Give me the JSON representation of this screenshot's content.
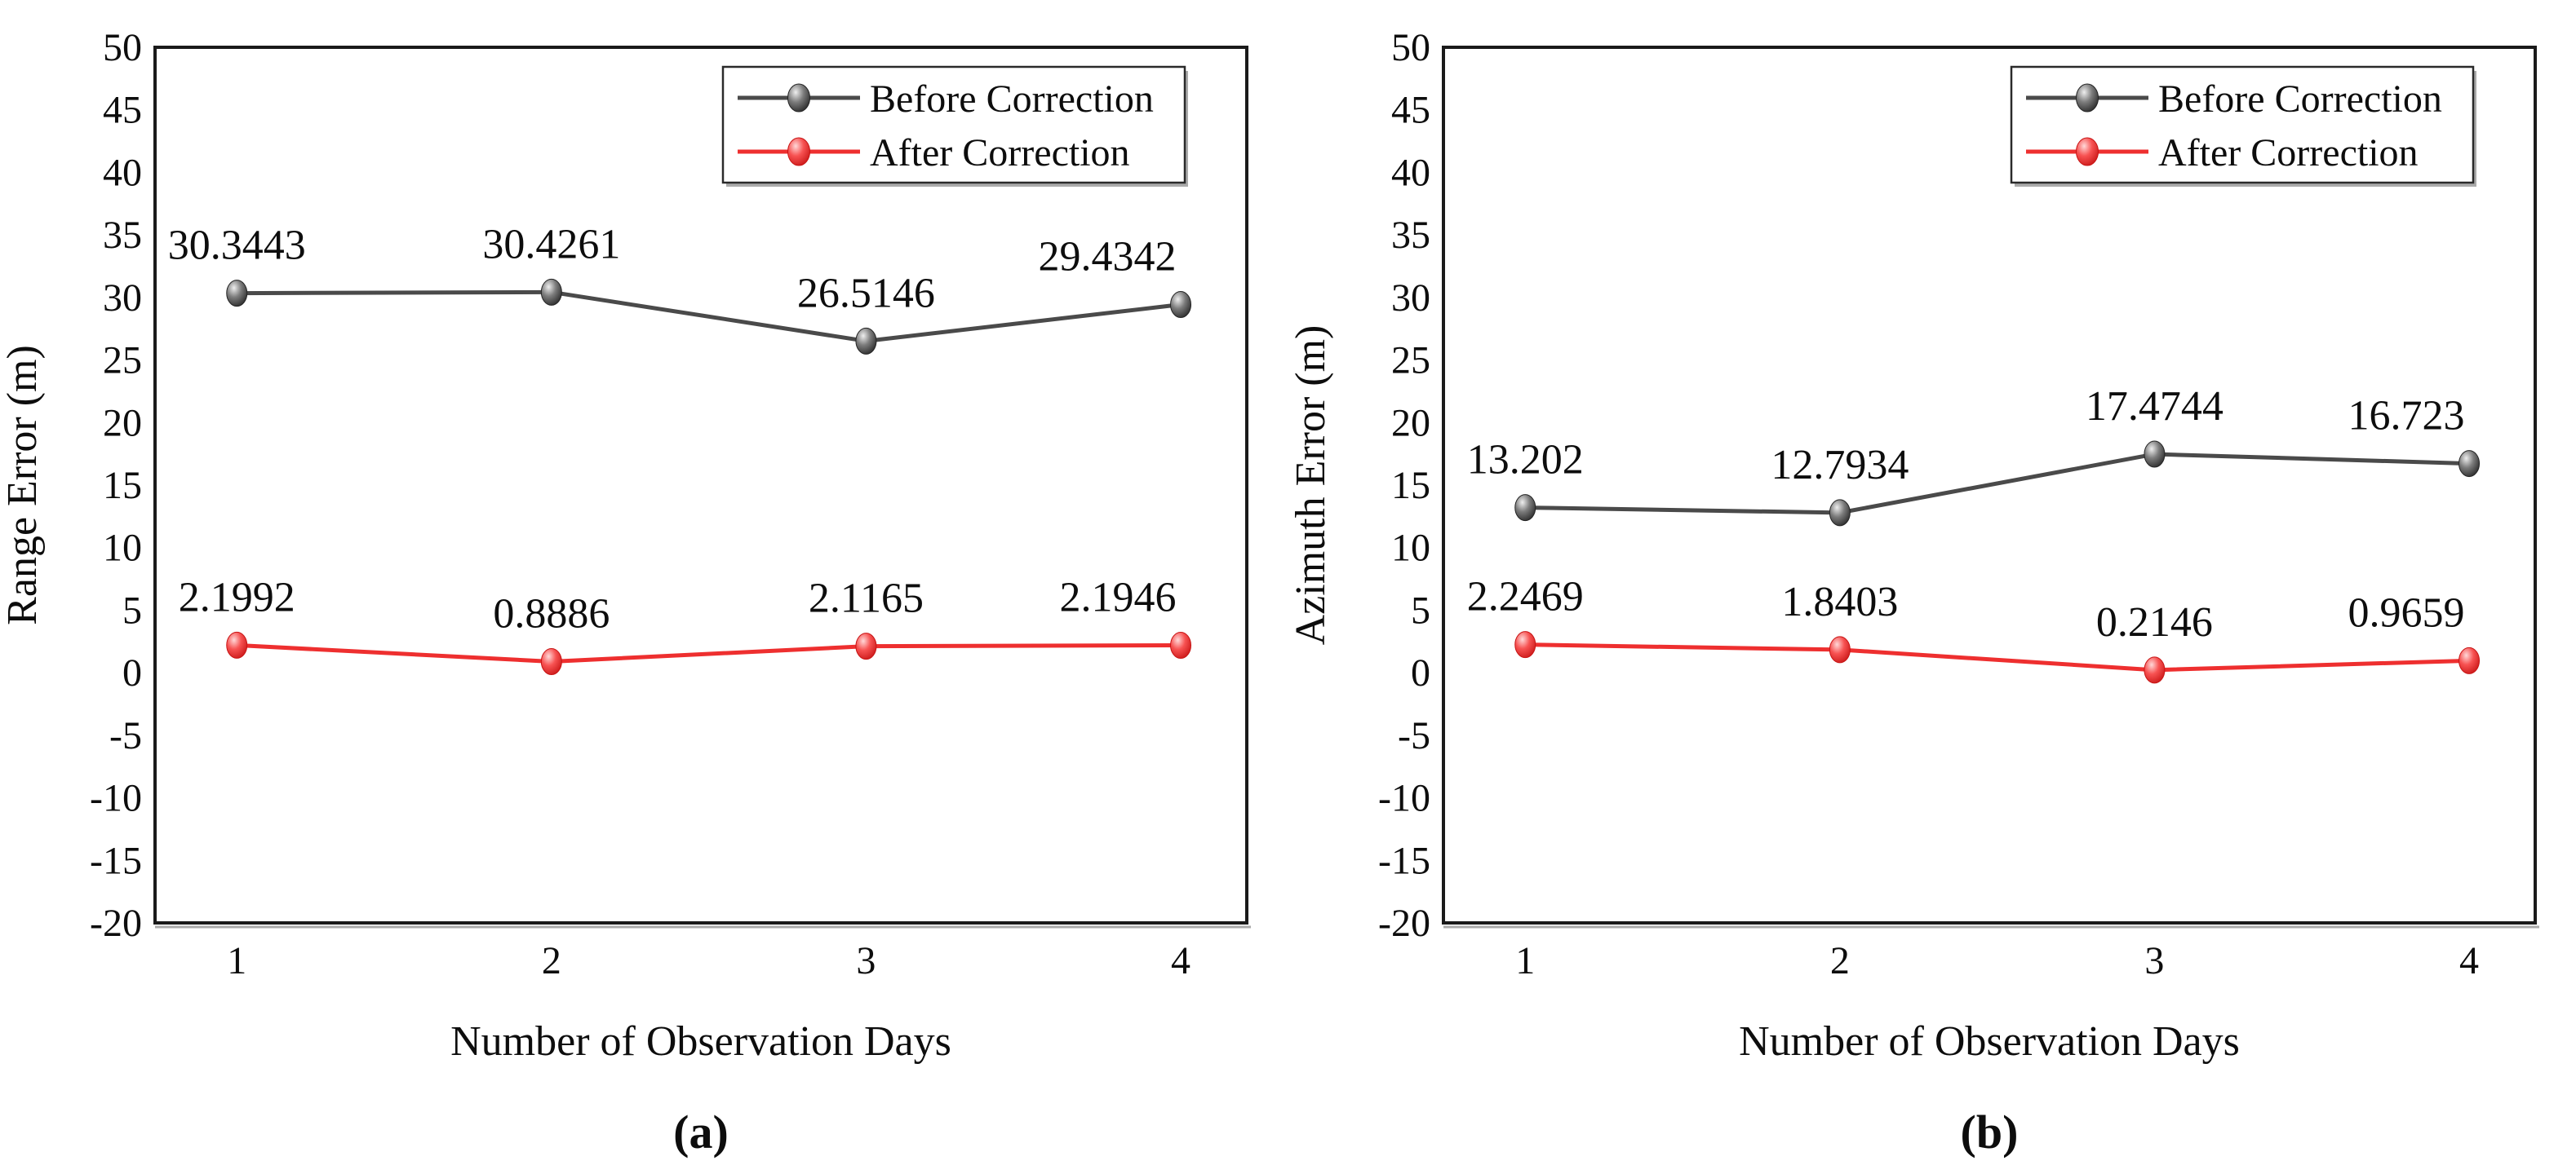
{
  "figure": {
    "background": "#ffffff",
    "axis_color": "#1a1a1a",
    "shadow_color": "#aaaaaa"
  },
  "chart_data": [
    {
      "type": "line",
      "caption": "(a)",
      "xlabel": "Number of Observation Days",
      "ylabel": "Range Error (m)",
      "x": [
        1,
        2,
        3,
        4
      ],
      "xtick_labels": [
        "1",
        "2",
        "3",
        "4"
      ],
      "ylim": [
        -20,
        50
      ],
      "ytick_step": 5,
      "ytick_labels": [
        "-20",
        "-15",
        "-10",
        "-5",
        "0",
        "5",
        "10",
        "15",
        "20",
        "25",
        "30",
        "35",
        "40",
        "45",
        "50"
      ],
      "xlim": [
        0.74,
        4.21
      ],
      "grid": false,
      "legend_position": "top-right",
      "series": [
        {
          "name": "Before Correction",
          "line_color": "#4a4a4a",
          "marker_gradient": [
            "#efefef",
            "#7c7c7c",
            "#242424"
          ],
          "values": [
            30.3443,
            30.4261,
            26.5146,
            29.4342
          ],
          "labels": [
            "30.3443",
            "30.4261",
            "26.5146",
            "29.4342"
          ]
        },
        {
          "name": "After Correction",
          "line_color": "#ee2f2f",
          "marker_gradient": [
            "#ffd8d8",
            "#f75252",
            "#c81414"
          ],
          "values": [
            2.1992,
            0.8886,
            2.1165,
            2.1946
          ],
          "labels": [
            "2.1992",
            "0.8886",
            "2.1165",
            "2.1946"
          ]
        }
      ]
    },
    {
      "type": "line",
      "caption": "(b)",
      "xlabel": "Number of Observation Days",
      "ylabel": "Azimuth Error (m)",
      "x": [
        1,
        2,
        3,
        4
      ],
      "xtick_labels": [
        "1",
        "2",
        "3",
        "4"
      ],
      "ylim": [
        -20,
        50
      ],
      "ytick_step": 5,
      "ytick_labels": [
        "-20",
        "-15",
        "-10",
        "-5",
        "0",
        "5",
        "10",
        "15",
        "20",
        "25",
        "30",
        "35",
        "40",
        "45",
        "50"
      ],
      "xlim": [
        0.74,
        4.21
      ],
      "grid": false,
      "legend_position": "top-right",
      "series": [
        {
          "name": "Before Correction",
          "line_color": "#4a4a4a",
          "marker_gradient": [
            "#efefef",
            "#7c7c7c",
            "#242424"
          ],
          "values": [
            13.202,
            12.7934,
            17.4744,
            16.723
          ],
          "labels": [
            "13.202",
            "12.7934",
            "17.4744",
            "16.723"
          ]
        },
        {
          "name": "After Correction",
          "line_color": "#ee2f2f",
          "marker_gradient": [
            "#ffd8d8",
            "#f75252",
            "#c81414"
          ],
          "values": [
            2.2469,
            1.8403,
            0.2146,
            0.9659
          ],
          "labels": [
            "2.2469",
            "1.8403",
            "0.2146",
            "0.9659"
          ]
        }
      ]
    }
  ]
}
